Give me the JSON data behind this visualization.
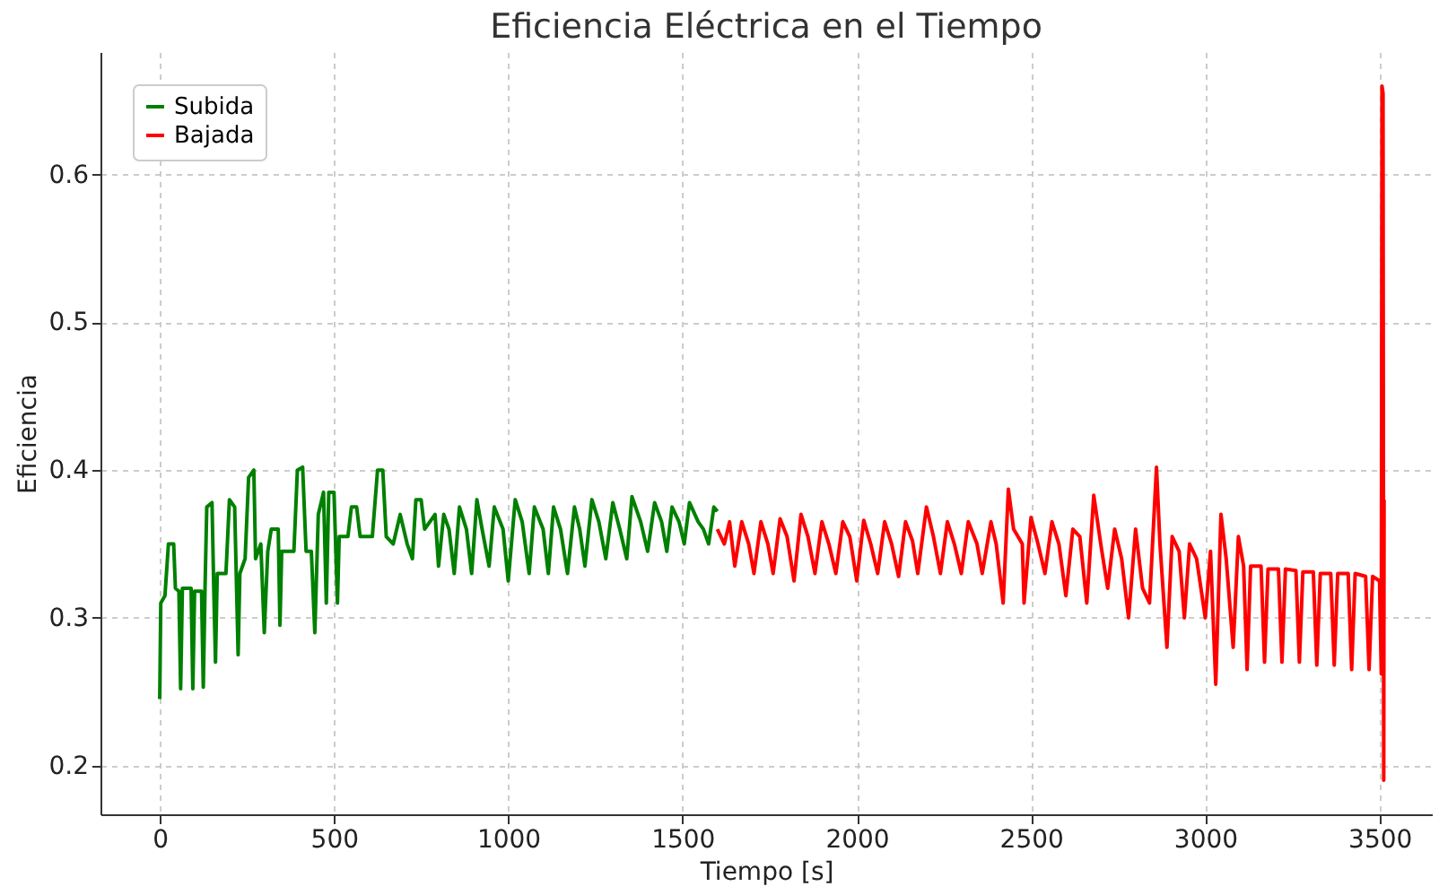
{
  "chart_data": {
    "type": "line",
    "title": "Eficiencia Eléctrica en el Tiempo",
    "xlabel": "Tiempo [s]",
    "ylabel": "Eficiencia",
    "xlim": [
      -170,
      3650
    ],
    "ylim": [
      0.167,
      0.683
    ],
    "xticks": [
      0,
      500,
      1000,
      1500,
      2000,
      2500,
      3000,
      3500
    ],
    "yticks": [
      0.2,
      0.3,
      0.4,
      0.5,
      0.6
    ],
    "grid": true,
    "legend": "top left",
    "line_style": "solid",
    "series": [
      {
        "name": "Subida",
        "color": "#008000",
        "x": [
          0,
          3,
          15,
          25,
          40,
          45,
          55,
          60,
          65,
          90,
          95,
          100,
          120,
          125,
          130,
          135,
          150,
          155,
          160,
          165,
          190,
          200,
          215,
          225,
          230,
          245,
          255,
          270,
          275,
          290,
          300,
          310,
          320,
          340,
          345,
          350,
          385,
          395,
          410,
          420,
          435,
          445,
          455,
          470,
          478,
          485,
          500,
          510,
          515,
          540,
          550,
          565,
          575,
          610,
          625,
          640,
          650,
          670,
          690,
          710,
          725,
          735,
          750,
          760,
          790,
          800,
          815,
          830,
          845,
          860,
          880,
          895,
          910,
          925,
          945,
          960,
          985,
          1000,
          1020,
          1040,
          1060,
          1075,
          1100,
          1115,
          1130,
          1150,
          1170,
          1190,
          1205,
          1220,
          1240,
          1260,
          1280,
          1300,
          1320,
          1340,
          1355,
          1380,
          1400,
          1420,
          1440,
          1455,
          1470,
          1490,
          1505,
          1520,
          1545,
          1560,
          1575,
          1590,
          1600
        ],
        "values": [
          0.245,
          0.31,
          0.315,
          0.35,
          0.35,
          0.32,
          0.318,
          0.252,
          0.32,
          0.32,
          0.252,
          0.318,
          0.318,
          0.253,
          0.32,
          0.375,
          0.378,
          0.32,
          0.27,
          0.33,
          0.33,
          0.38,
          0.375,
          0.275,
          0.33,
          0.34,
          0.395,
          0.4,
          0.34,
          0.35,
          0.29,
          0.345,
          0.36,
          0.36,
          0.295,
          0.345,
          0.345,
          0.4,
          0.402,
          0.345,
          0.345,
          0.29,
          0.37,
          0.385,
          0.31,
          0.385,
          0.385,
          0.31,
          0.355,
          0.355,
          0.375,
          0.375,
          0.355,
          0.355,
          0.4,
          0.4,
          0.355,
          0.35,
          0.37,
          0.35,
          0.34,
          0.38,
          0.38,
          0.36,
          0.37,
          0.335,
          0.37,
          0.36,
          0.33,
          0.375,
          0.36,
          0.33,
          0.38,
          0.36,
          0.335,
          0.375,
          0.36,
          0.325,
          0.38,
          0.365,
          0.33,
          0.375,
          0.36,
          0.33,
          0.375,
          0.36,
          0.33,
          0.375,
          0.36,
          0.335,
          0.38,
          0.365,
          0.34,
          0.378,
          0.36,
          0.34,
          0.382,
          0.365,
          0.345,
          0.378,
          0.365,
          0.345,
          0.375,
          0.365,
          0.35,
          0.378,
          0.365,
          0.36,
          0.35,
          0.375,
          0.372
        ]
      },
      {
        "name": "Bajada",
        "color": "#ff0000",
        "x": [
          1600,
          1620,
          1635,
          1650,
          1670,
          1690,
          1705,
          1725,
          1745,
          1760,
          1780,
          1800,
          1820,
          1840,
          1860,
          1880,
          1900,
          1920,
          1940,
          1960,
          1980,
          2000,
          2020,
          2040,
          2060,
          2080,
          2100,
          2120,
          2140,
          2160,
          2175,
          2200,
          2220,
          2240,
          2260,
          2280,
          2300,
          2320,
          2345,
          2360,
          2385,
          2400,
          2420,
          2435,
          2450,
          2475,
          2480,
          2500,
          2520,
          2540,
          2560,
          2580,
          2600,
          2620,
          2640,
          2660,
          2680,
          2700,
          2720,
          2740,
          2760,
          2780,
          2800,
          2820,
          2840,
          2860,
          2870,
          2890,
          2905,
          2925,
          2940,
          2955,
          2975,
          3000,
          3015,
          3030,
          3045,
          3060,
          3080,
          3095,
          3110,
          3120,
          3130,
          3160,
          3170,
          3180,
          3210,
          3220,
          3230,
          3260,
          3270,
          3280,
          3310,
          3320,
          3330,
          3360,
          3370,
          3380,
          3410,
          3420,
          3430,
          3460,
          3470,
          3480,
          3500,
          3505,
          3507,
          3510,
          3512,
          3513
        ],
        "values": [
          0.36,
          0.35,
          0.365,
          0.335,
          0.365,
          0.35,
          0.33,
          0.365,
          0.35,
          0.33,
          0.367,
          0.355,
          0.325,
          0.37,
          0.355,
          0.33,
          0.365,
          0.35,
          0.33,
          0.365,
          0.355,
          0.325,
          0.366,
          0.35,
          0.33,
          0.365,
          0.35,
          0.328,
          0.365,
          0.352,
          0.33,
          0.375,
          0.355,
          0.33,
          0.365,
          0.35,
          0.33,
          0.365,
          0.35,
          0.33,
          0.365,
          0.35,
          0.31,
          0.387,
          0.36,
          0.35,
          0.31,
          0.368,
          0.35,
          0.33,
          0.365,
          0.35,
          0.315,
          0.36,
          0.355,
          0.31,
          0.383,
          0.35,
          0.32,
          0.36,
          0.34,
          0.3,
          0.36,
          0.32,
          0.31,
          0.402,
          0.35,
          0.28,
          0.355,
          0.345,
          0.3,
          0.35,
          0.34,
          0.3,
          0.345,
          0.255,
          0.37,
          0.34,
          0.28,
          0.355,
          0.335,
          0.265,
          0.335,
          0.335,
          0.27,
          0.333,
          0.333,
          0.27,
          0.333,
          0.332,
          0.27,
          0.331,
          0.331,
          0.268,
          0.33,
          0.33,
          0.268,
          0.33,
          0.33,
          0.265,
          0.33,
          0.328,
          0.265,
          0.328,
          0.325,
          0.262,
          0.66,
          0.655,
          0.19,
          0.38
        ]
      }
    ]
  }
}
